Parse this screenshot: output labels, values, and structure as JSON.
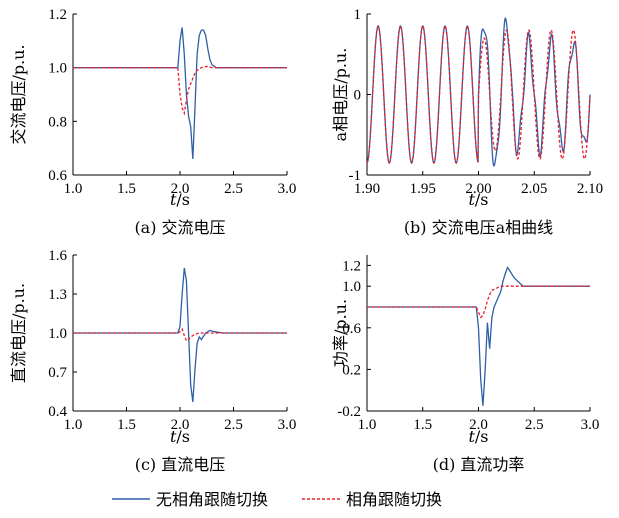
{
  "colors": {
    "series_a": "#2f5fa7",
    "series_b": "#e8212b",
    "axis": "#000000"
  },
  "legend": {
    "series_a": "无相角跟随切换",
    "series_b": "相角跟随切换"
  },
  "chart_data": [
    {
      "type": "line",
      "panel": "a",
      "caption": "(a)  交流电压",
      "xlabel": "t/s",
      "ylabel": "交流电压/p.u.",
      "xlim": [
        1.0,
        3.0
      ],
      "ylim": [
        0.6,
        1.2
      ],
      "xticks": [
        "1.0",
        "1.5",
        "2.0",
        "2.5",
        "3.0"
      ],
      "yticks": [
        "0.6",
        "0.8",
        "1.0",
        "1.2"
      ],
      "series": [
        {
          "key": "series_a",
          "x": [
            1.0,
            1.98,
            2.0,
            2.02,
            2.04,
            2.06,
            2.08,
            2.1,
            2.12,
            2.14,
            2.16,
            2.18,
            2.2,
            2.22,
            2.24,
            2.26,
            2.28,
            2.3,
            2.34,
            2.4,
            2.5,
            3.0
          ],
          "y": [
            1.0,
            1.0,
            1.1,
            1.15,
            1.05,
            0.9,
            0.82,
            0.78,
            0.66,
            0.85,
            1.05,
            1.12,
            1.14,
            1.14,
            1.12,
            1.07,
            1.03,
            1.01,
            1.0,
            1.0,
            1.0,
            1.0
          ]
        },
        {
          "key": "series_b",
          "x": [
            1.0,
            1.98,
            2.0,
            2.02,
            2.04,
            2.06,
            2.08,
            2.1,
            2.12,
            2.14,
            2.16,
            2.2,
            2.25,
            2.3,
            2.4,
            3.0
          ],
          "y": [
            1.0,
            1.0,
            0.9,
            0.85,
            0.83,
            0.88,
            0.92,
            0.94,
            0.96,
            0.98,
            0.99,
            1.0,
            1.005,
            1.0,
            1.0,
            1.0
          ]
        }
      ]
    },
    {
      "type": "line",
      "panel": "b",
      "caption": "(b)  交流电压a相曲线",
      "xlabel": "t/s",
      "ylabel": "a相电压/p.u.",
      "xlim": [
        1.9,
        2.1
      ],
      "ylim": [
        -1,
        1
      ],
      "xticks": [
        "1.90",
        "1.95",
        "2.00",
        "2.05",
        "2.10"
      ],
      "yticks": [
        "-1",
        "0",
        "1"
      ],
      "wave": {
        "frequency_hz": 50,
        "t_event": 2.0,
        "pre_amplitude": 0.85
      }
    },
    {
      "type": "line",
      "panel": "c",
      "caption": "(c)  直流电压",
      "xlabel": "t/s",
      "ylabel": "直流电压/p.u.",
      "xlim": [
        1.0,
        3.0
      ],
      "ylim": [
        0.4,
        1.6
      ],
      "xticks": [
        "1.0",
        "1.5",
        "2.0",
        "2.5",
        "3.0"
      ],
      "yticks": [
        "0.4",
        "0.7",
        "1.0",
        "1.3",
        "1.6"
      ],
      "series": [
        {
          "key": "series_a",
          "x": [
            1.0,
            1.98,
            2.0,
            2.02,
            2.04,
            2.06,
            2.08,
            2.1,
            2.12,
            2.14,
            2.16,
            2.18,
            2.2,
            2.24,
            2.28,
            2.32,
            2.4,
            2.5,
            3.0
          ],
          "y": [
            1.0,
            1.0,
            1.05,
            1.3,
            1.5,
            1.4,
            1.0,
            0.6,
            0.47,
            0.72,
            0.92,
            0.97,
            0.95,
            1.0,
            1.02,
            1.01,
            1.0,
            1.0,
            1.0
          ]
        },
        {
          "key": "series_b",
          "x": [
            1.0,
            1.98,
            2.0,
            2.02,
            2.04,
            2.06,
            2.08,
            2.1,
            2.14,
            2.18,
            2.22,
            2.3,
            2.4,
            3.0
          ],
          "y": [
            1.0,
            1.0,
            1.01,
            1.03,
            0.98,
            0.94,
            0.95,
            0.97,
            0.99,
            1.0,
            1.0,
            1.0,
            1.0,
            1.0
          ]
        }
      ]
    },
    {
      "type": "line",
      "panel": "d",
      "caption": "(d)  直流功率",
      "xlabel": "t/s",
      "ylabel": "功率/p.u.",
      "xlim": [
        1.0,
        3.0
      ],
      "ylim": [
        -0.2,
        1.3
      ],
      "xticks": [
        "1.0",
        "1.5",
        "2.0",
        "2.5",
        "3.0"
      ],
      "yticks": [
        "-0.2",
        "0.2",
        "0.6",
        "1.0",
        "1.2"
      ],
      "series": [
        {
          "key": "series_a",
          "x": [
            1.0,
            1.98,
            2.0,
            2.02,
            2.04,
            2.06,
            2.08,
            2.1,
            2.12,
            2.14,
            2.16,
            2.18,
            2.2,
            2.22,
            2.24,
            2.26,
            2.28,
            2.32,
            2.4,
            2.5,
            3.0
          ],
          "y": [
            0.8,
            0.8,
            0.6,
            0.1,
            -0.15,
            0.2,
            0.65,
            0.4,
            0.7,
            0.8,
            0.85,
            0.9,
            0.95,
            1.05,
            1.12,
            1.18,
            1.15,
            1.08,
            1.0,
            1.0,
            1.0
          ]
        },
        {
          "key": "series_b",
          "x": [
            1.0,
            1.98,
            2.0,
            2.02,
            2.04,
            2.06,
            2.08,
            2.1,
            2.12,
            2.16,
            2.2,
            2.3,
            2.4,
            3.0
          ],
          "y": [
            0.8,
            0.8,
            0.75,
            0.7,
            0.72,
            0.78,
            0.86,
            0.92,
            0.96,
            0.98,
            1.0,
            1.0,
            1.0,
            1.0
          ]
        }
      ]
    }
  ]
}
